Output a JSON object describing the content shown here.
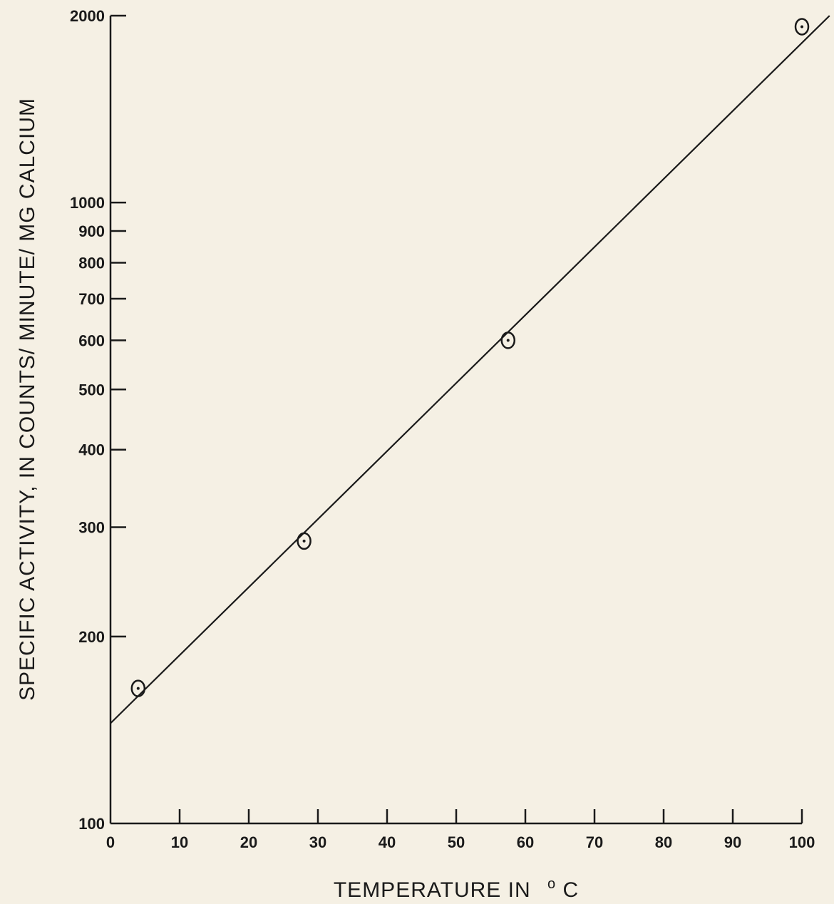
{
  "chart_data": {
    "type": "scatter",
    "xlabel": "TEMPERATURE IN",
    "xlabel_unit_sup": "o",
    "xlabel_unit": "C",
    "ylabel": "SPECIFIC ACTIVITY, IN COUNTS/ MINUTE/ MG CALCIUM",
    "x_scale": "linear",
    "y_scale": "log",
    "xlim": [
      0,
      100
    ],
    "ylim": [
      100,
      2000
    ],
    "x_ticks": [
      0,
      10,
      20,
      30,
      40,
      50,
      60,
      70,
      80,
      90,
      100
    ],
    "x_tick_labels": [
      "0",
      "10",
      "20",
      "30",
      "40",
      "50",
      "60",
      "70",
      "80",
      "90",
      "100"
    ],
    "y_ticks": [
      100,
      200,
      300,
      400,
      500,
      600,
      700,
      800,
      900,
      1000,
      2000
    ],
    "y_tick_labels": [
      "100",
      "200",
      "300",
      "400",
      "500",
      "600",
      "700",
      "800",
      "900",
      "1000",
      "2000"
    ],
    "grid": false,
    "points": [
      {
        "x": 4,
        "y": 165
      },
      {
        "x": 28,
        "y": 285
      },
      {
        "x": 57.5,
        "y": 600
      },
      {
        "x": 100,
        "y": 1920
      }
    ],
    "fit_line": [
      {
        "x": 0,
        "y": 145
      },
      {
        "x": 104,
        "y": 2000
      }
    ]
  }
}
